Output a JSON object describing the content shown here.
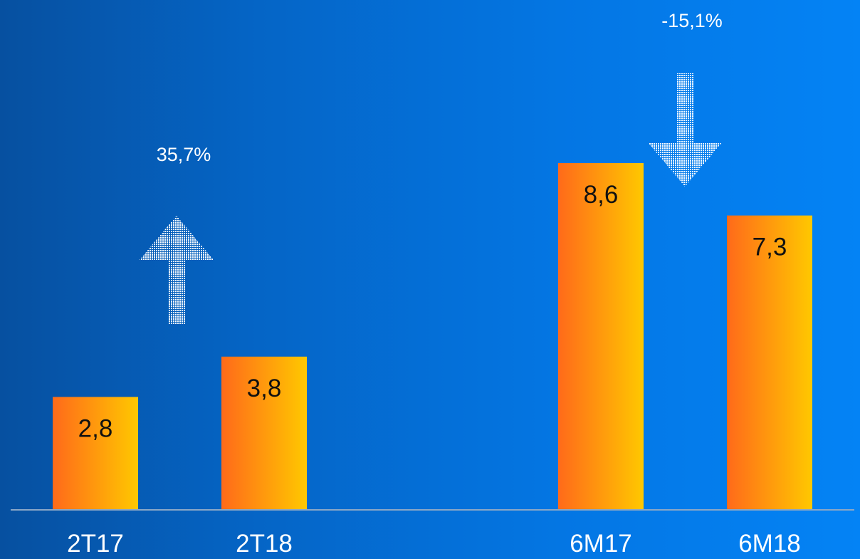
{
  "chart_data": {
    "type": "bar",
    "categories": [
      "2T17",
      "2T18",
      "6M17",
      "6M18"
    ],
    "values": [
      2.8,
      3.8,
      8.6,
      7.3
    ],
    "value_labels": [
      "2,8",
      "3,8",
      "8,6",
      "7,3"
    ],
    "ylim": [
      0,
      8.6
    ],
    "grid": false,
    "legend": "none",
    "bar_color_start": "#ff6a1a",
    "bar_color_end": "#ffc800",
    "axis_color": "#8aa7c7",
    "annotations": [
      {
        "text": "35,7%",
        "direction": "up",
        "between": [
          "2T17",
          "2T18"
        ]
      },
      {
        "text": "-15,1%",
        "direction": "down",
        "between": [
          "6M17",
          "6M18"
        ]
      }
    ]
  }
}
